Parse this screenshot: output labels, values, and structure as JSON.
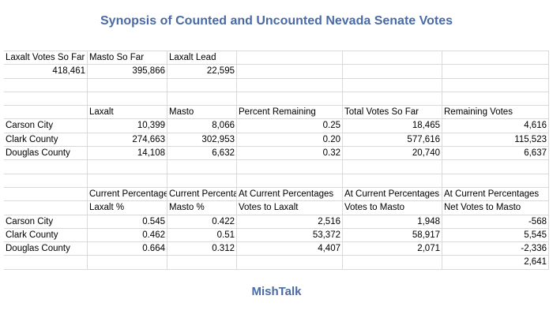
{
  "header": {
    "title": "Synopsis of Counted and Uncounted Nevada Senate Votes"
  },
  "table": {
    "rows": [
      [
        "Laxalt Votes So Far",
        "Masto So Far",
        "Laxalt Lead",
        null,
        null,
        null
      ],
      [
        "418,461",
        "395,866",
        "22,595",
        null,
        null,
        null
      ],
      [
        null,
        null,
        null,
        null,
        null,
        null
      ],
      [
        null,
        null,
        null,
        null,
        null,
        null
      ],
      [
        null,
        "Laxalt",
        "Masto",
        "Percent Remaining",
        "Total Votes So Far",
        "Remaining Votes"
      ],
      [
        "Carson City",
        "10,399",
        "8,066",
        "0.25",
        "18,465",
        "4,616"
      ],
      [
        "Clark County",
        "274,663",
        "302,953",
        "0.20",
        "577,616",
        "115,523"
      ],
      [
        "Douglas County",
        "14,108",
        "6,632",
        "0.32",
        "20,740",
        "6,637"
      ],
      [
        null,
        null,
        null,
        null,
        null,
        null
      ],
      [
        null,
        null,
        null,
        null,
        null,
        null
      ],
      [
        null,
        "Current Percentage",
        "Current Percenta",
        "At Current Percentages",
        "At Current Percentages",
        "At Current Percentages"
      ],
      [
        null,
        "Laxalt %",
        "Masto %",
        "Votes to Laxalt",
        "Votes to Masto",
        "Net Votes to Masto"
      ],
      [
        "Carson City",
        "0.545",
        "0.422",
        "2,516",
        "1,948",
        "-568"
      ],
      [
        "Clark County",
        "0.462",
        "0.51",
        "53,372",
        "58,917",
        "5,545"
      ],
      [
        "Douglas County",
        "0.664",
        "0.312",
        "4,407",
        "2,071",
        "-2,336"
      ],
      [
        null,
        null,
        null,
        null,
        null,
        "2,641"
      ]
    ]
  },
  "footer": {
    "brand": "MishTalk"
  }
}
